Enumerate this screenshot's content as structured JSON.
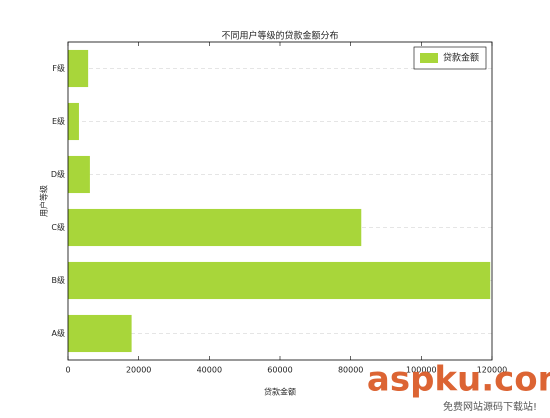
{
  "chart_data": {
    "type": "barh",
    "title": "不同用户等级的贷款金额分布",
    "xlabel": "贷款金额",
    "ylabel": "用户等级",
    "categories": [
      "A级",
      "B级",
      "C级",
      "D级",
      "E级",
      "F级"
    ],
    "series": [
      {
        "name": "贷款金额",
        "color": "#a8d63a",
        "values": [
          18000,
          119500,
          83000,
          6200,
          3100,
          5700
        ]
      }
    ],
    "xlim": [
      0,
      120000
    ],
    "xticks": [
      0,
      20000,
      40000,
      60000,
      80000,
      100000,
      120000
    ],
    "grid": true,
    "legend": "upper right",
    "watermark": "aspku.com",
    "watermark_subtitle": "免费网站源码下载站!"
  }
}
